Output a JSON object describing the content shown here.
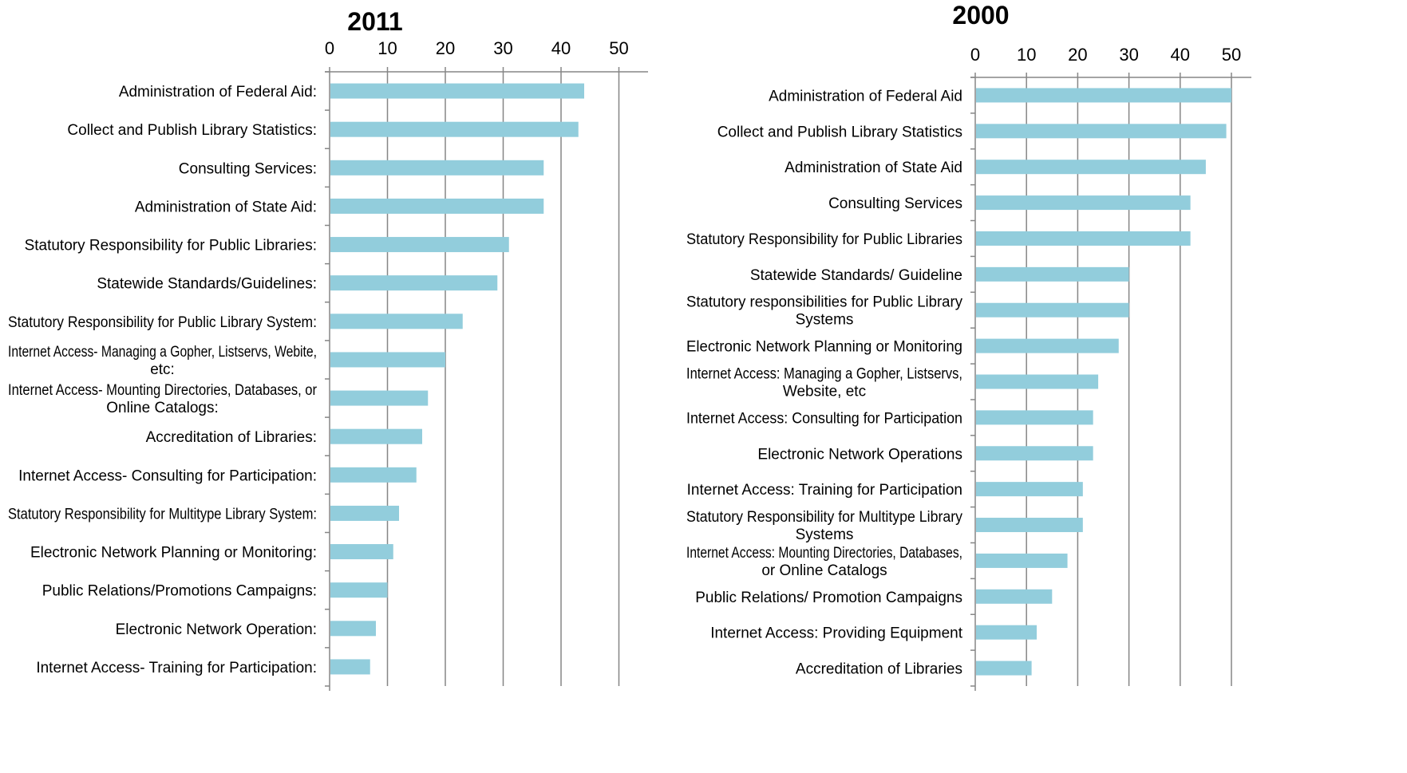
{
  "chart_data": [
    {
      "type": "bar",
      "orientation": "horizontal",
      "title": "2011",
      "xlabel": "",
      "ylabel": "",
      "xlim": [
        0,
        50
      ],
      "x_ticks": [
        0,
        10,
        20,
        30,
        40,
        50
      ],
      "x_tick_labels": [
        "0",
        "10",
        "20",
        "30",
        "40",
        "50"
      ],
      "x_axis_position": "top",
      "grid": "vertical",
      "categories": [
        "Administration of Federal Aid:",
        "Collect and Publish Library Statistics:",
        "Consulting Services:",
        "Administration of State Aid:",
        "Statutory Responsibility for Public Libraries:",
        "Statewide Standards/Guidelines:",
        "Statutory Responsibility for Public Library System:",
        "Internet Access- Managing a Gopher, Listservs, Webite, etc:",
        "Internet Access- Mounting Directories, Databases, or Online Catalogs:",
        "Accreditation of Libraries:",
        "Internet Access- Consulting for Participation:",
        "Statutory Responsibility for Multitype Library System:",
        "Electronic Network Planning or Monitoring:",
        "Public Relations/Promotions Campaigns:",
        "Electronic Network Operation:",
        "Internet Access- Training for Participation:"
      ],
      "category_label_lines": [
        [
          "Administration of Federal Aid:"
        ],
        [
          "Collect and Publish Library Statistics:"
        ],
        [
          "Consulting Services:"
        ],
        [
          "Administration of State Aid:"
        ],
        [
          "Statutory Responsibility for Public Libraries:"
        ],
        [
          "Statewide Standards/Guidelines:"
        ],
        [
          "Statutory Responsibility for Public Library System:"
        ],
        [
          "Internet Access- Managing a Gopher, Listservs, Webite,",
          "etc:"
        ],
        [
          "Internet Access- Mounting Directories, Databases, or",
          "Online Catalogs:"
        ],
        [
          "Accreditation of Libraries:"
        ],
        [
          "Internet Access- Consulting for Participation:"
        ],
        [
          "Statutory Responsibility for Multitype Library System:"
        ],
        [
          "Electronic Network Planning or Monitoring:"
        ],
        [
          "Public Relations/Promotions Campaigns:"
        ],
        [
          "Electronic Network Operation:"
        ],
        [
          "Internet Access- Training for Participation:"
        ]
      ],
      "values": [
        44,
        43,
        37,
        37,
        31,
        29,
        23,
        20,
        17,
        16,
        15,
        12,
        11,
        10,
        8,
        7
      ],
      "bar_color": "#92cddc",
      "axis_color": "#868686"
    },
    {
      "type": "bar",
      "orientation": "horizontal",
      "title": "2000",
      "xlabel": "",
      "ylabel": "",
      "xlim": [
        0,
        50
      ],
      "x_ticks": [
        0,
        10,
        20,
        30,
        40,
        50
      ],
      "x_tick_labels": [
        "0",
        "10",
        "20",
        "30",
        "40",
        "50"
      ],
      "x_axis_position": "top",
      "grid": "vertical",
      "categories": [
        "Administration of Federal Aid",
        "Collect and Publish Library Statistics",
        "Administration of State Aid",
        "Consulting Services",
        "Statutory Responsibility for Public Libraries",
        "Statewide Standards/ Guideline",
        "Statutory responsibilities for Public Library Systems",
        "Electronic Network Planning or Monitoring",
        "Internet Access: Managing a Gopher, Listservs, Website, etc",
        "Internet Access: Consulting for Participation",
        "Electronic Network Operations",
        "Internet Access: Training for Participation",
        "Statutory Responsibility for Multitype Library Systems",
        "Internet Access: Mounting Directories, Databases, or Online Catalogs",
        "Public Relations/ Promotion Campaigns",
        "Internet Access: Providing Equipment",
        "Accreditation of Libraries"
      ],
      "category_label_lines": [
        [
          "Administration of Federal Aid"
        ],
        [
          "Collect and Publish Library Statistics"
        ],
        [
          "Administration of State Aid"
        ],
        [
          "Consulting Services"
        ],
        [
          "Statutory Responsibility for Public Libraries"
        ],
        [
          "Statewide Standards/ Guideline"
        ],
        [
          "Statutory responsibilities for Public Library",
          "Systems"
        ],
        [
          "Electronic Network Planning or Monitoring"
        ],
        [
          "Internet Access: Managing a Gopher, Listservs,",
          "Website, etc"
        ],
        [
          "Internet Access: Consulting for Participation"
        ],
        [
          "Electronic Network Operations"
        ],
        [
          "Internet Access: Training for Participation"
        ],
        [
          "Statutory Responsibility for Multitype Library",
          "Systems"
        ],
        [
          "Internet Access: Mounting Directories, Databases,",
          "or Online Catalogs"
        ],
        [
          "Public Relations/ Promotion Campaigns"
        ],
        [
          "Internet Access: Providing Equipment"
        ],
        [
          "Accreditation of Libraries"
        ]
      ],
      "values": [
        50,
        49,
        45,
        42,
        42,
        30,
        30,
        28,
        24,
        23,
        23,
        21,
        21,
        18,
        15,
        12,
        11
      ],
      "bar_color": "#92cddc",
      "axis_color": "#868686"
    }
  ]
}
